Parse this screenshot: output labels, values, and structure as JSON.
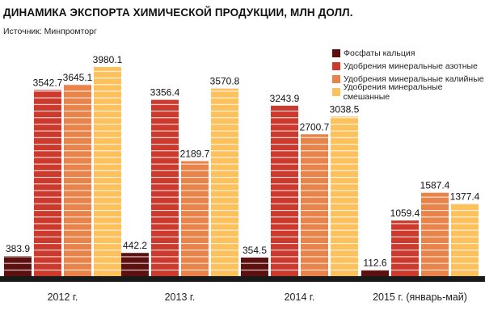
{
  "title": "ДИНАМИКА ЭКСПОРТА ХИМИЧЕСКОЙ ПРОДУКЦИИ, МЛН ДОЛЛ.",
  "source": "Источник: Минпромторг",
  "chart_data": {
    "type": "bar",
    "categories": [
      "2012 г.",
      "2013 г.",
      "2014 г.",
      "2015 г. (январь-май)"
    ],
    "series": [
      {
        "name": "Фосфаты кальция",
        "color": "#5c1010",
        "values": [
          383.9,
          442.2,
          354.5,
          112.6
        ]
      },
      {
        "name": "Удобрения минеральные азотные",
        "color": "#cc3a2e",
        "values": [
          3542.7,
          3356.4,
          3243.9,
          1059.4
        ]
      },
      {
        "name": "Удобрения минеральные калийные",
        "color": "#e8834a",
        "values": [
          3645.1,
          2189.7,
          2700.7,
          1587.4
        ]
      },
      {
        "name": "Удобрения минеральные смешанные",
        "color": "#fcc15c",
        "values": [
          3980.1,
          3570.8,
          3038.5,
          1377.4
        ]
      }
    ],
    "labels": [
      [
        "383.9",
        "442.2",
        "354.5",
        "112.6"
      ],
      [
        "3542.7",
        "3356.4",
        "3243.9",
        "1059.4"
      ],
      [
        "3645.1",
        "2189.7",
        "2700.7",
        "1587.4"
      ],
      [
        "3980.1",
        "3570.8",
        "3038.5",
        "1377.4"
      ]
    ],
    "ylim": [
      0,
      3980.1
    ],
    "grid": false,
    "legend_position": "top-right"
  }
}
